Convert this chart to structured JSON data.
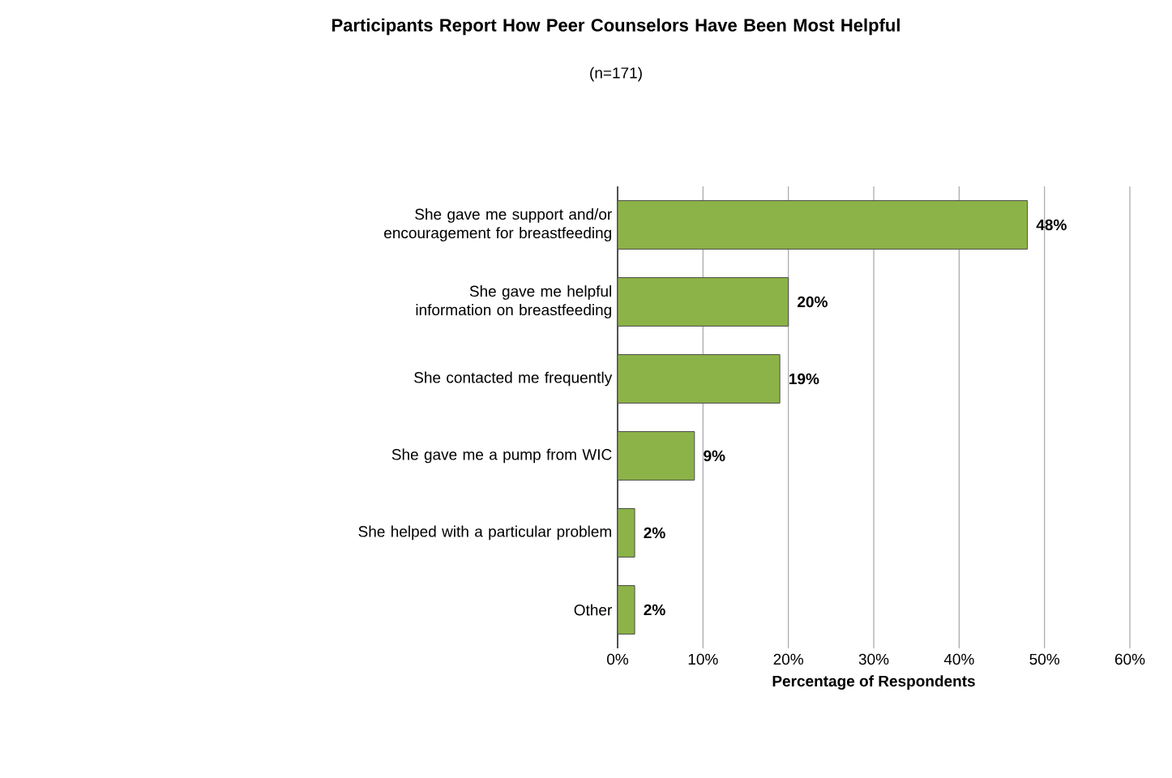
{
  "chart_data": {
    "type": "bar",
    "orientation": "horizontal",
    "title": "Participants Report How Peer Counselors Have Been Most Helpful",
    "subtitle": "(n=171)",
    "xlabel": "Percentage of Respondents",
    "categories": [
      "She gave me support and/or encouragement for breastfeeding",
      "She gave me helpful information on breastfeeding",
      "She contacted me frequently",
      "She gave me a pump from WIC",
      "She helped with a particular problem",
      "Other"
    ],
    "values": [
      48,
      20,
      19,
      9,
      2,
      2
    ],
    "value_labels": [
      "48%",
      "20%",
      "19%",
      "9%",
      "2%",
      "2%"
    ],
    "color": "#8cb347",
    "xlim": [
      0,
      60
    ],
    "xticks": [
      {
        "value": 0,
        "label": "0%"
      },
      {
        "value": 10,
        "label": "10%"
      },
      {
        "value": 20,
        "label": "20%"
      },
      {
        "value": 30,
        "label": "30%"
      },
      {
        "value": 40,
        "label": "40%"
      },
      {
        "value": 50,
        "label": "50%"
      },
      {
        "value": 60,
        "label": "60%"
      }
    ],
    "grid": "x"
  }
}
